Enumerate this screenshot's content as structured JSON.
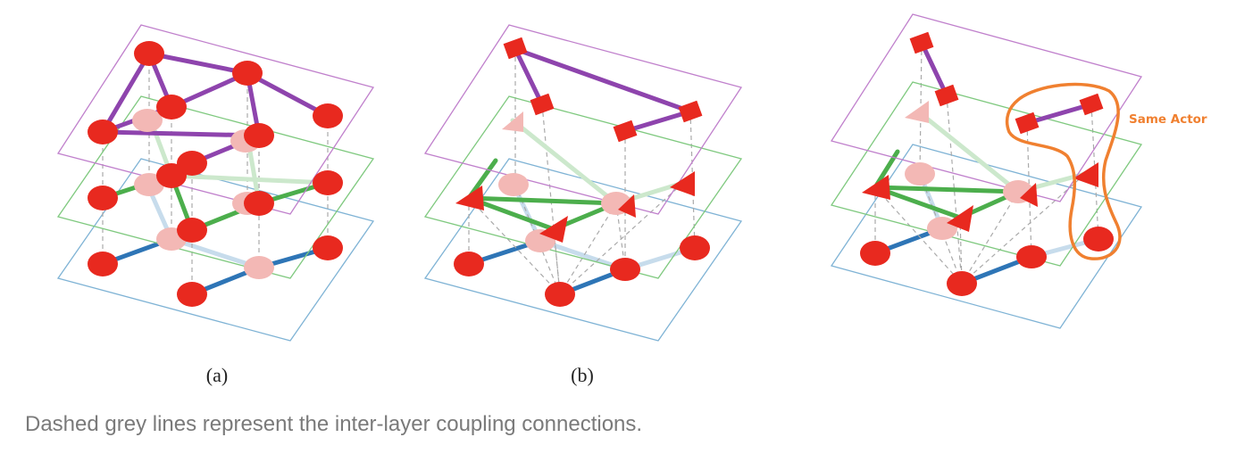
{
  "figure": {
    "panel_labels": {
      "a": "(a)",
      "b": "(b)"
    },
    "callout_label": "Same Actor",
    "colors": {
      "top_layer": "#c080cc",
      "top_edge": "#8e44ad",
      "middle_layer": "#7fc97f",
      "middle_edge": "#4cae4c",
      "bottom_layer": "#7fb3d5",
      "bottom_edge": "#2e75b6",
      "node": "#e8291f",
      "ghost_node": "#f3b8b5",
      "coupling": "#aaaaaa",
      "callout": "#f08030"
    }
  },
  "caption": "Dashed grey lines represent the inter-layer coupling connections."
}
